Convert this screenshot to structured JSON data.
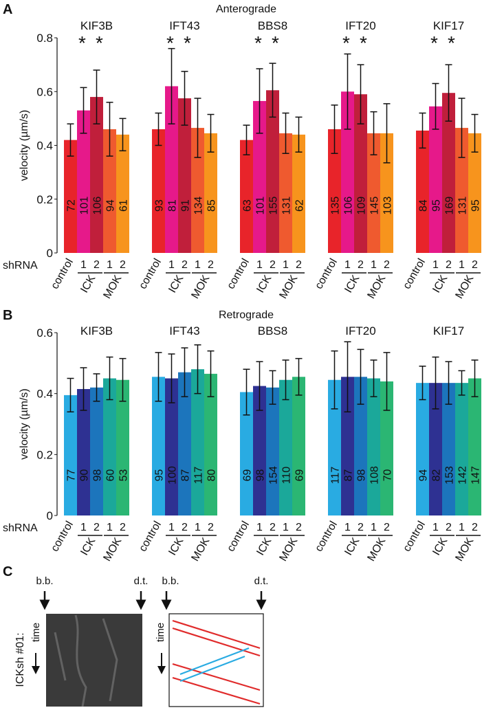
{
  "chart_data": [
    {
      "type": "bar",
      "panel": "A",
      "title": "Anterograde",
      "y_label": "velocity (µm/s)",
      "row_label": "shRNA",
      "categories": [
        "KIF3B",
        "IFT43",
        "BBS8",
        "IFT20",
        "KIF17"
      ],
      "control_label": "control",
      "treatments": [
        "ICK",
        "MOK"
      ],
      "replicates": [
        "1",
        "2"
      ],
      "ylim": [
        0,
        0.8
      ],
      "yticks": [
        0,
        0.2,
        0.4,
        0.6,
        0.8
      ],
      "series": [
        {
          "color": "#e8242a",
          "values": [
            0.42,
            0.46,
            0.42,
            0.46,
            0.455
          ],
          "errors": [
            0.06,
            0.06,
            0.055,
            0.09,
            0.065
          ],
          "n": [
            "72",
            "93",
            "63",
            "135",
            "84"
          ]
        },
        {
          "color": "#e6198a",
          "values": [
            0.53,
            0.62,
            0.565,
            0.6,
            0.545
          ],
          "errors": [
            0.085,
            0.14,
            0.12,
            0.14,
            0.085
          ],
          "n": [
            "101",
            "81",
            "101",
            "106",
            "95"
          ],
          "annotations": [
            "*",
            "*",
            "*",
            "*",
            "*"
          ]
        },
        {
          "color": "#c01f3b",
          "values": [
            0.58,
            0.575,
            0.605,
            0.59,
            0.595
          ],
          "errors": [
            0.1,
            0.1,
            0.1,
            0.11,
            0.105
          ],
          "n": [
            "106",
            "91",
            "155",
            "109",
            "169"
          ],
          "annotations": [
            "*",
            "*",
            "*",
            "*",
            "*"
          ]
        },
        {
          "color": "#ef5a2f",
          "values": [
            0.46,
            0.465,
            0.445,
            0.445,
            0.465
          ],
          "errors": [
            0.1,
            0.11,
            0.075,
            0.08,
            0.11
          ],
          "n": [
            "94",
            "134",
            "131",
            "145",
            "131"
          ]
        },
        {
          "color": "#f7941d",
          "values": [
            0.44,
            0.445,
            0.44,
            0.445,
            0.445
          ],
          "errors": [
            0.06,
            0.07,
            0.065,
            0.11,
            0.07
          ],
          "n": [
            "61",
            "85",
            "62",
            "103",
            "95"
          ]
        }
      ]
    },
    {
      "type": "bar",
      "panel": "B",
      "title": "Retrograde",
      "y_label": "velocity (µm/s)",
      "row_label": "shRNA",
      "categories": [
        "KIF3B",
        "IFT43",
        "BBS8",
        "IFT20",
        "KIF17"
      ],
      "control_label": "control",
      "treatments": [
        "ICK",
        "MOK"
      ],
      "replicates": [
        "1",
        "2"
      ],
      "ylim": [
        0,
        0.6
      ],
      "yticks": [
        0,
        0.2,
        0.4,
        0.6
      ],
      "series": [
        {
          "color": "#29abe2",
          "values": [
            0.395,
            0.455,
            0.405,
            0.445,
            0.435
          ],
          "errors": [
            0.055,
            0.08,
            0.075,
            0.095,
            0.055
          ],
          "n": [
            "77",
            "95",
            "69",
            "117",
            "94"
          ]
        },
        {
          "color": "#2e3192",
          "values": [
            0.415,
            0.45,
            0.425,
            0.455,
            0.435
          ],
          "errors": [
            0.07,
            0.08,
            0.08,
            0.115,
            0.085
          ],
          "n": [
            "90",
            "100",
            "98",
            "87",
            "82"
          ]
        },
        {
          "color": "#1c75bc",
          "values": [
            0.42,
            0.47,
            0.42,
            0.455,
            0.435
          ],
          "errors": [
            0.045,
            0.08,
            0.055,
            0.09,
            0.07
          ],
          "n": [
            "98",
            "87",
            "154",
            "98",
            "153"
          ]
        },
        {
          "color": "#1ba89a",
          "values": [
            0.45,
            0.48,
            0.445,
            0.45,
            0.435
          ],
          "errors": [
            0.07,
            0.08,
            0.065,
            0.06,
            0.04
          ],
          "n": [
            "60",
            "117",
            "110",
            "108",
            "142"
          ]
        },
        {
          "color": "#2bb673",
          "values": [
            0.445,
            0.465,
            0.455,
            0.44,
            0.45
          ],
          "errors": [
            0.07,
            0.075,
            0.06,
            0.095,
            0.06
          ],
          "n": [
            "53",
            "80",
            "69",
            "70",
            "147"
          ]
        }
      ]
    }
  ],
  "panel_c": {
    "label": "C",
    "row_label": "ICKsh #01:",
    "markers": [
      "b.b.",
      "d.t.",
      "b.b.",
      "d.t."
    ],
    "axis_label": "time"
  }
}
